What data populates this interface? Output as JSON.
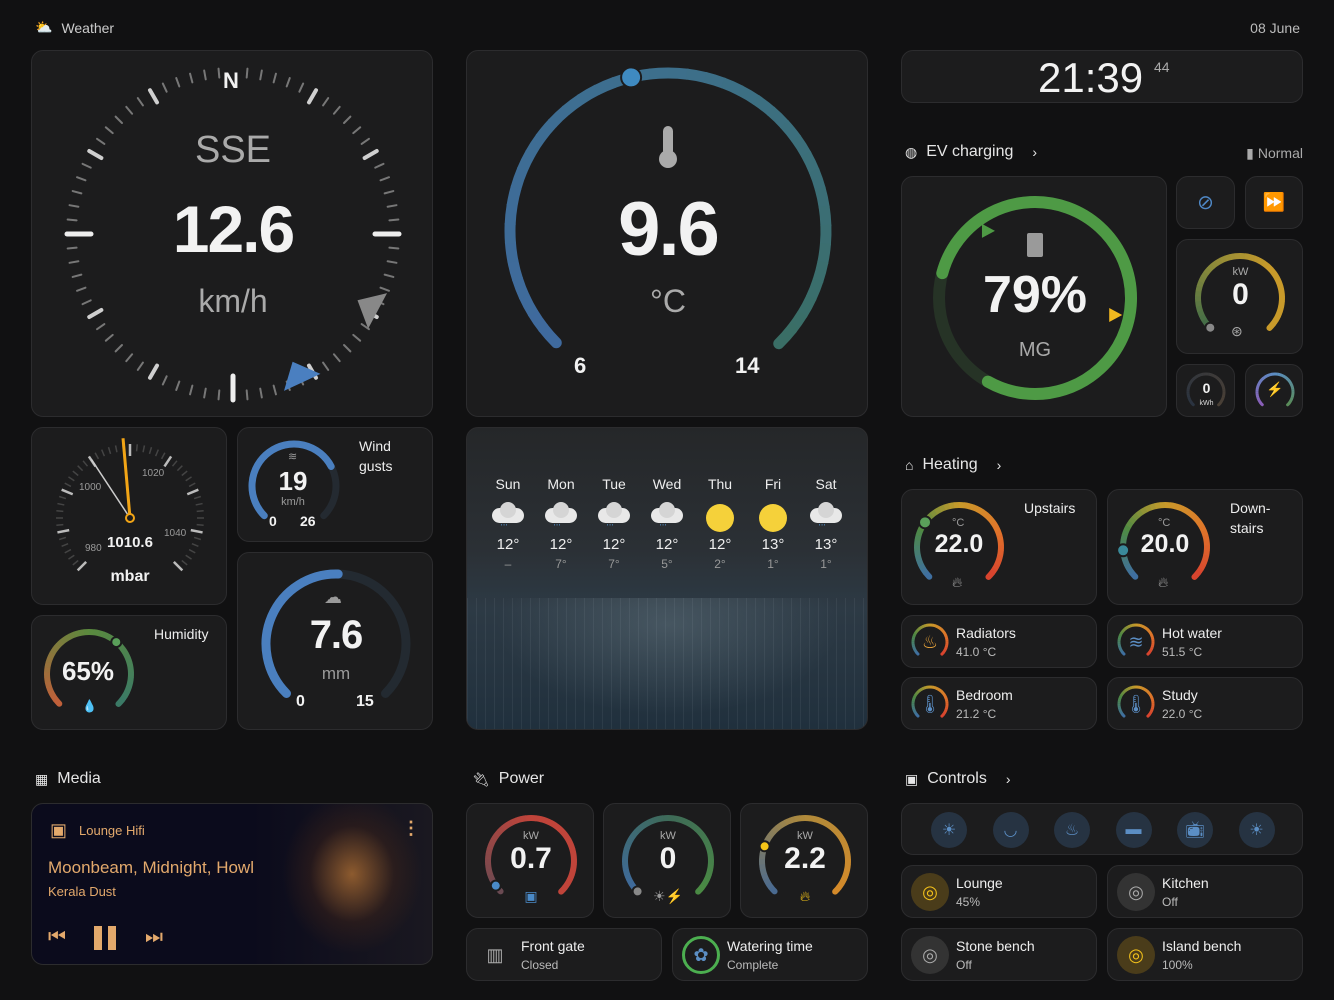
{
  "header": {
    "title": "Weather",
    "date": "08 June"
  },
  "wind": {
    "direction": "SSE",
    "speed": "12.6",
    "unit": "km/h",
    "north": "N"
  },
  "temperature": {
    "value": "9.6",
    "unit": "°C",
    "min": "6",
    "max": "14"
  },
  "clock": {
    "time": "21:39",
    "seconds": "44"
  },
  "ev": {
    "title": "EV charging",
    "mode": "Normal",
    "battery": "79%",
    "battery_level": 79,
    "vehicle": "MG",
    "power_unit": "kW",
    "power": "0",
    "energy": "0",
    "energy_unit": "kWh"
  },
  "pressure": {
    "value": "1010.6",
    "unit": "mbar",
    "min": 960,
    "max": 1060,
    "ticks": [
      "980",
      "1000",
      "1020",
      "1040"
    ]
  },
  "gusts": {
    "label_line1": "Wind",
    "label_line2": "gusts",
    "value": "19",
    "unit": "km/h",
    "min": "0",
    "max": "26"
  },
  "rain": {
    "value": "7.6",
    "unit": "mm",
    "min": "0",
    "max": "15"
  },
  "humidity": {
    "label": "Humidity",
    "value": "65%",
    "level": 65
  },
  "forecast": [
    {
      "day": "Sun",
      "icon": "rain",
      "hi": "12°",
      "lo": "–"
    },
    {
      "day": "Mon",
      "icon": "rain",
      "hi": "12°",
      "lo": "7°"
    },
    {
      "day": "Tue",
      "icon": "rain",
      "hi": "12°",
      "lo": "7°"
    },
    {
      "day": "Wed",
      "icon": "rain",
      "hi": "12°",
      "lo": "5°"
    },
    {
      "day": "Thu",
      "icon": "sun",
      "hi": "12°",
      "lo": "2°"
    },
    {
      "day": "Fri",
      "icon": "sun",
      "hi": "13°",
      "lo": "1°"
    },
    {
      "day": "Sat",
      "icon": "rain",
      "hi": "13°",
      "lo": "1°"
    }
  ],
  "heating": {
    "title": "Heating",
    "zones": [
      {
        "name": "Upstairs",
        "value": "22.0",
        "unit": "°C",
        "setpoint_level": 0.3
      },
      {
        "name": "Down-\nstairs",
        "value": "20.0",
        "unit": "°C",
        "setpoint_level": 0.15
      }
    ],
    "rooms": [
      {
        "name": "Radiators",
        "value": "41.0 °C",
        "icon": "radiator",
        "color": "#e8a33a"
      },
      {
        "name": "Hot water",
        "value": "51.5 °C",
        "icon": "water-heater",
        "color": "#5b8ec4"
      },
      {
        "name": "Bedroom",
        "value": "21.2 °C",
        "icon": "thermometer",
        "color": "#5b8ec4"
      },
      {
        "name": "Study",
        "value": "22.0 °C",
        "icon": "thermometer",
        "color": "#5b8ec4"
      }
    ]
  },
  "media": {
    "title": "Media",
    "player": "Lounge Hifi",
    "track": "Moonbeam, Midnight, Howl",
    "artist": "Kerala Dust",
    "accent": "#e3a96c"
  },
  "power": {
    "title": "Power",
    "gauges": [
      {
        "unit": "kW",
        "value": "0.7",
        "icon": "socket"
      },
      {
        "unit": "kW",
        "value": "0",
        "icon": "solar"
      },
      {
        "unit": "kW",
        "value": "2.2",
        "icon": "fire"
      }
    ],
    "tiles": [
      {
        "name": "Front gate",
        "state": "Closed"
      },
      {
        "name": "Watering time",
        "state": "Complete"
      }
    ]
  },
  "controls": {
    "title": "Controls",
    "scenes": [
      "sunrise",
      "dining",
      "cake",
      "sofa",
      "tv",
      "sunset"
    ],
    "lights": [
      {
        "name": "Lounge",
        "state": "45%",
        "on": true
      },
      {
        "name": "Kitchen",
        "state": "Off",
        "on": false
      },
      {
        "name": "Stone bench",
        "state": "Off",
        "on": false
      },
      {
        "name": "Island bench",
        "state": "100%",
        "on": true
      }
    ]
  }
}
